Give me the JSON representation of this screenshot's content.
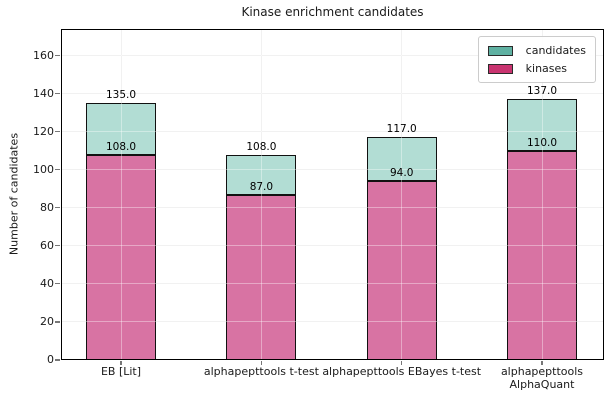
{
  "chart_data": {
    "type": "bar",
    "stacked": true,
    "title": "Kinase enrichment candidates",
    "xlabel": "",
    "ylabel": "Number of candidates",
    "categories": [
      "EB [Lit]",
      "alphapepttools t-test",
      "alphapepttools EBayes t-test",
      "alphapepttools\nAlphaQuant"
    ],
    "series": [
      {
        "name": "kinases",
        "values": [
          108,
          87,
          94,
          110
        ],
        "fill": "#d873a3",
        "legend_color": "#c93470"
      },
      {
        "name": "candidates",
        "values": [
          135,
          108,
          117,
          137
        ],
        "fill": "#b2ddd4",
        "legend_color": "#5fb1a2"
      }
    ],
    "stacking_note": "kinases segment on bottom; candidates values are the stacked bar totals (top segment = total - kinases)",
    "bar_value_labels": {
      "totals": [
        "135.0",
        "108.0",
        "117.0",
        "137.0"
      ],
      "kinases": [
        "108.0",
        "87.0",
        "94.0",
        "110.0"
      ]
    },
    "yticks": [
      0,
      20,
      40,
      60,
      80,
      100,
      120,
      140,
      160
    ],
    "ylim": [
      0,
      174
    ],
    "grid": true,
    "legend_position": "upper right",
    "colors": {
      "grid": "#e9e9e9",
      "bar_edge": "#111111",
      "axes_edge": "#000000",
      "tick": "#777777"
    }
  },
  "legend": {
    "entries": [
      {
        "label": "candidates",
        "color": "#5fb1a2"
      },
      {
        "label": "kinases",
        "color": "#c93470"
      }
    ]
  }
}
